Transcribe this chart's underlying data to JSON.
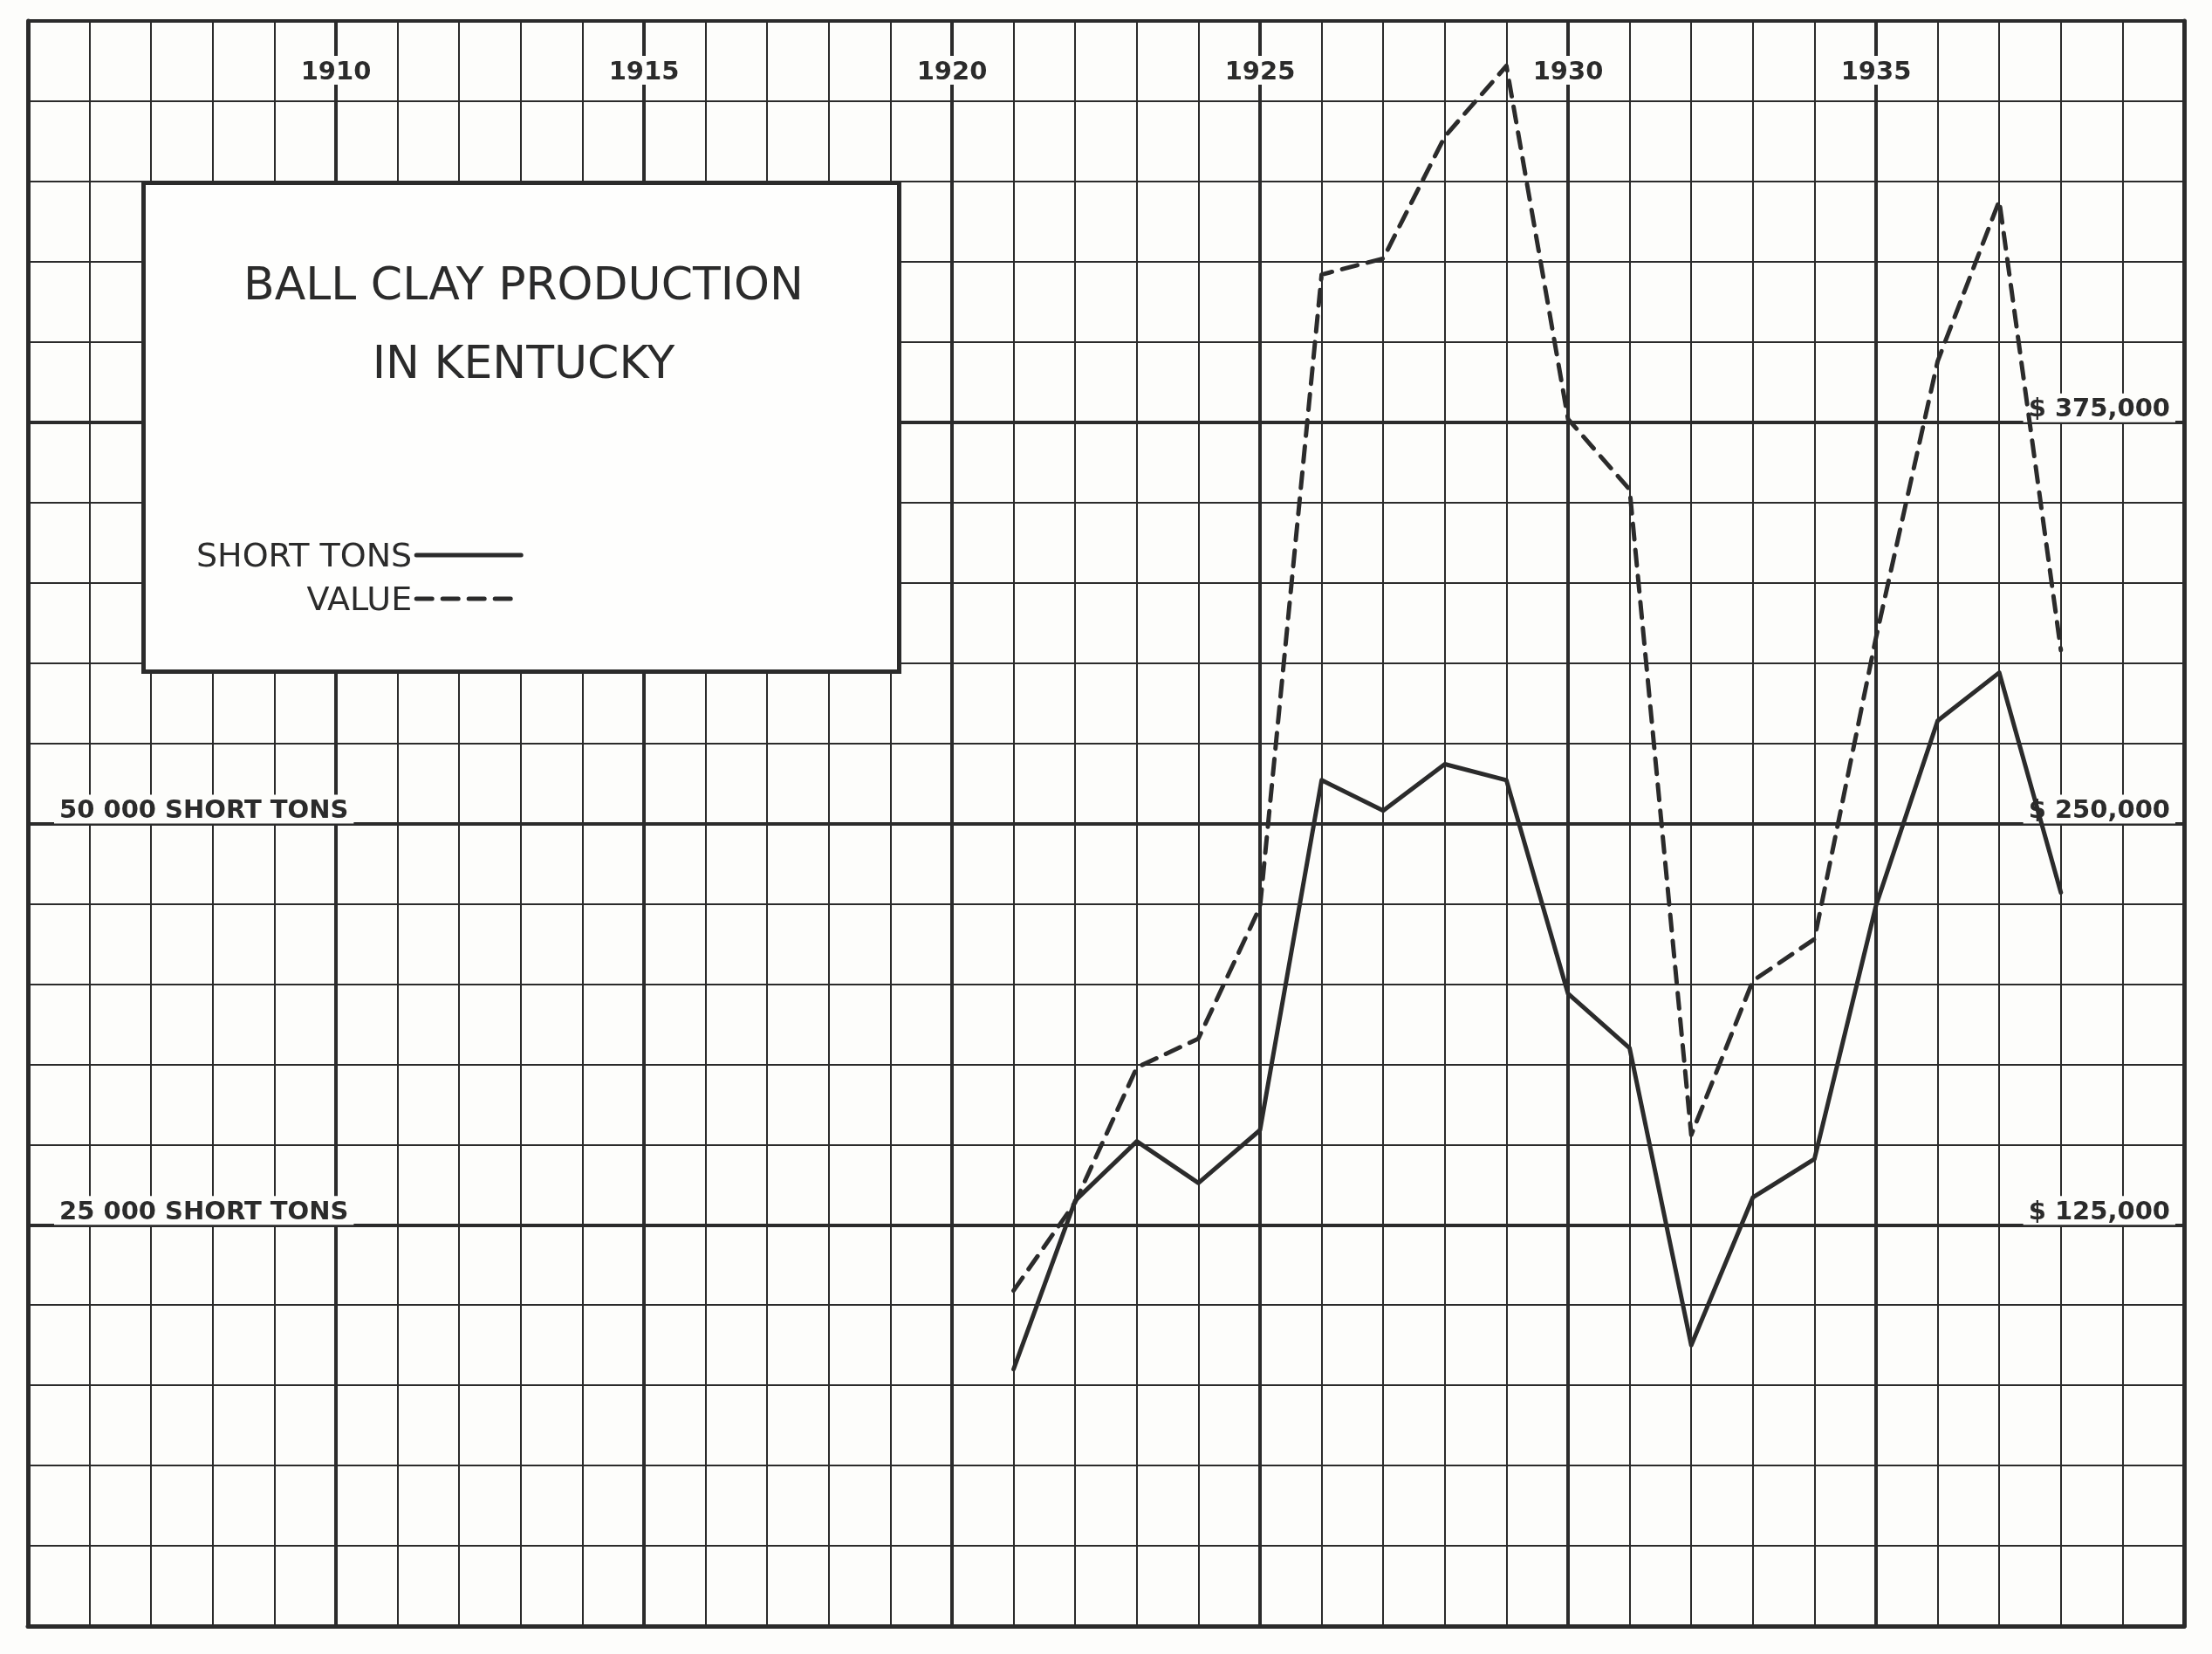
{
  "chart_data": {
    "type": "line",
    "title": "BALL CLAY PRODUCTION\nIN KENTUCKY",
    "x": [
      1921,
      1922,
      1923,
      1924,
      1925,
      1926,
      1927,
      1928,
      1929,
      1930,
      1931,
      1932,
      1933,
      1934,
      1935,
      1936,
      1937,
      1938
    ],
    "series": [
      {
        "name": "SHORT TONS",
        "color": "#2b2b2b",
        "line_style": "solid",
        "values": [
          16000,
          26500,
          30200,
          27600,
          30900,
          52700,
          50800,
          53700,
          52700,
          39400,
          36000,
          17500,
          26700,
          29100,
          44900,
          56400,
          59400,
          45700
        ]
      },
      {
        "name": "VALUE",
        "color": "#2b2b2b",
        "line_style": "dashed",
        "axis": "y2",
        "values": [
          104500,
          132000,
          174000,
          183000,
          224000,
          421000,
          426000,
          464000,
          486000,
          376000,
          354000,
          153000,
          201000,
          214000,
          308000,
          394000,
          444000,
          304000
        ]
      }
    ],
    "xlim": [
      1905,
      1940
    ],
    "xticks": [
      1910,
      1915,
      1920,
      1925,
      1930,
      1935
    ],
    "ylim": [
      0,
      100000
    ],
    "yticks": [
      {
        "value": 25000,
        "label": "25 000 SHORT TONS"
      },
      {
        "value": 50000,
        "label": "50 000 SHORT TONS"
      }
    ],
    "y2lim": [
      0,
      500000
    ],
    "y2ticks": [
      {
        "value": 125000,
        "label": "$ 125,000"
      },
      {
        "value": 250000,
        "label": "$ 250,000"
      },
      {
        "value": 375000,
        "label": "$ 375,000"
      }
    ],
    "grid": true,
    "legend": "top left",
    "marker": "none"
  }
}
